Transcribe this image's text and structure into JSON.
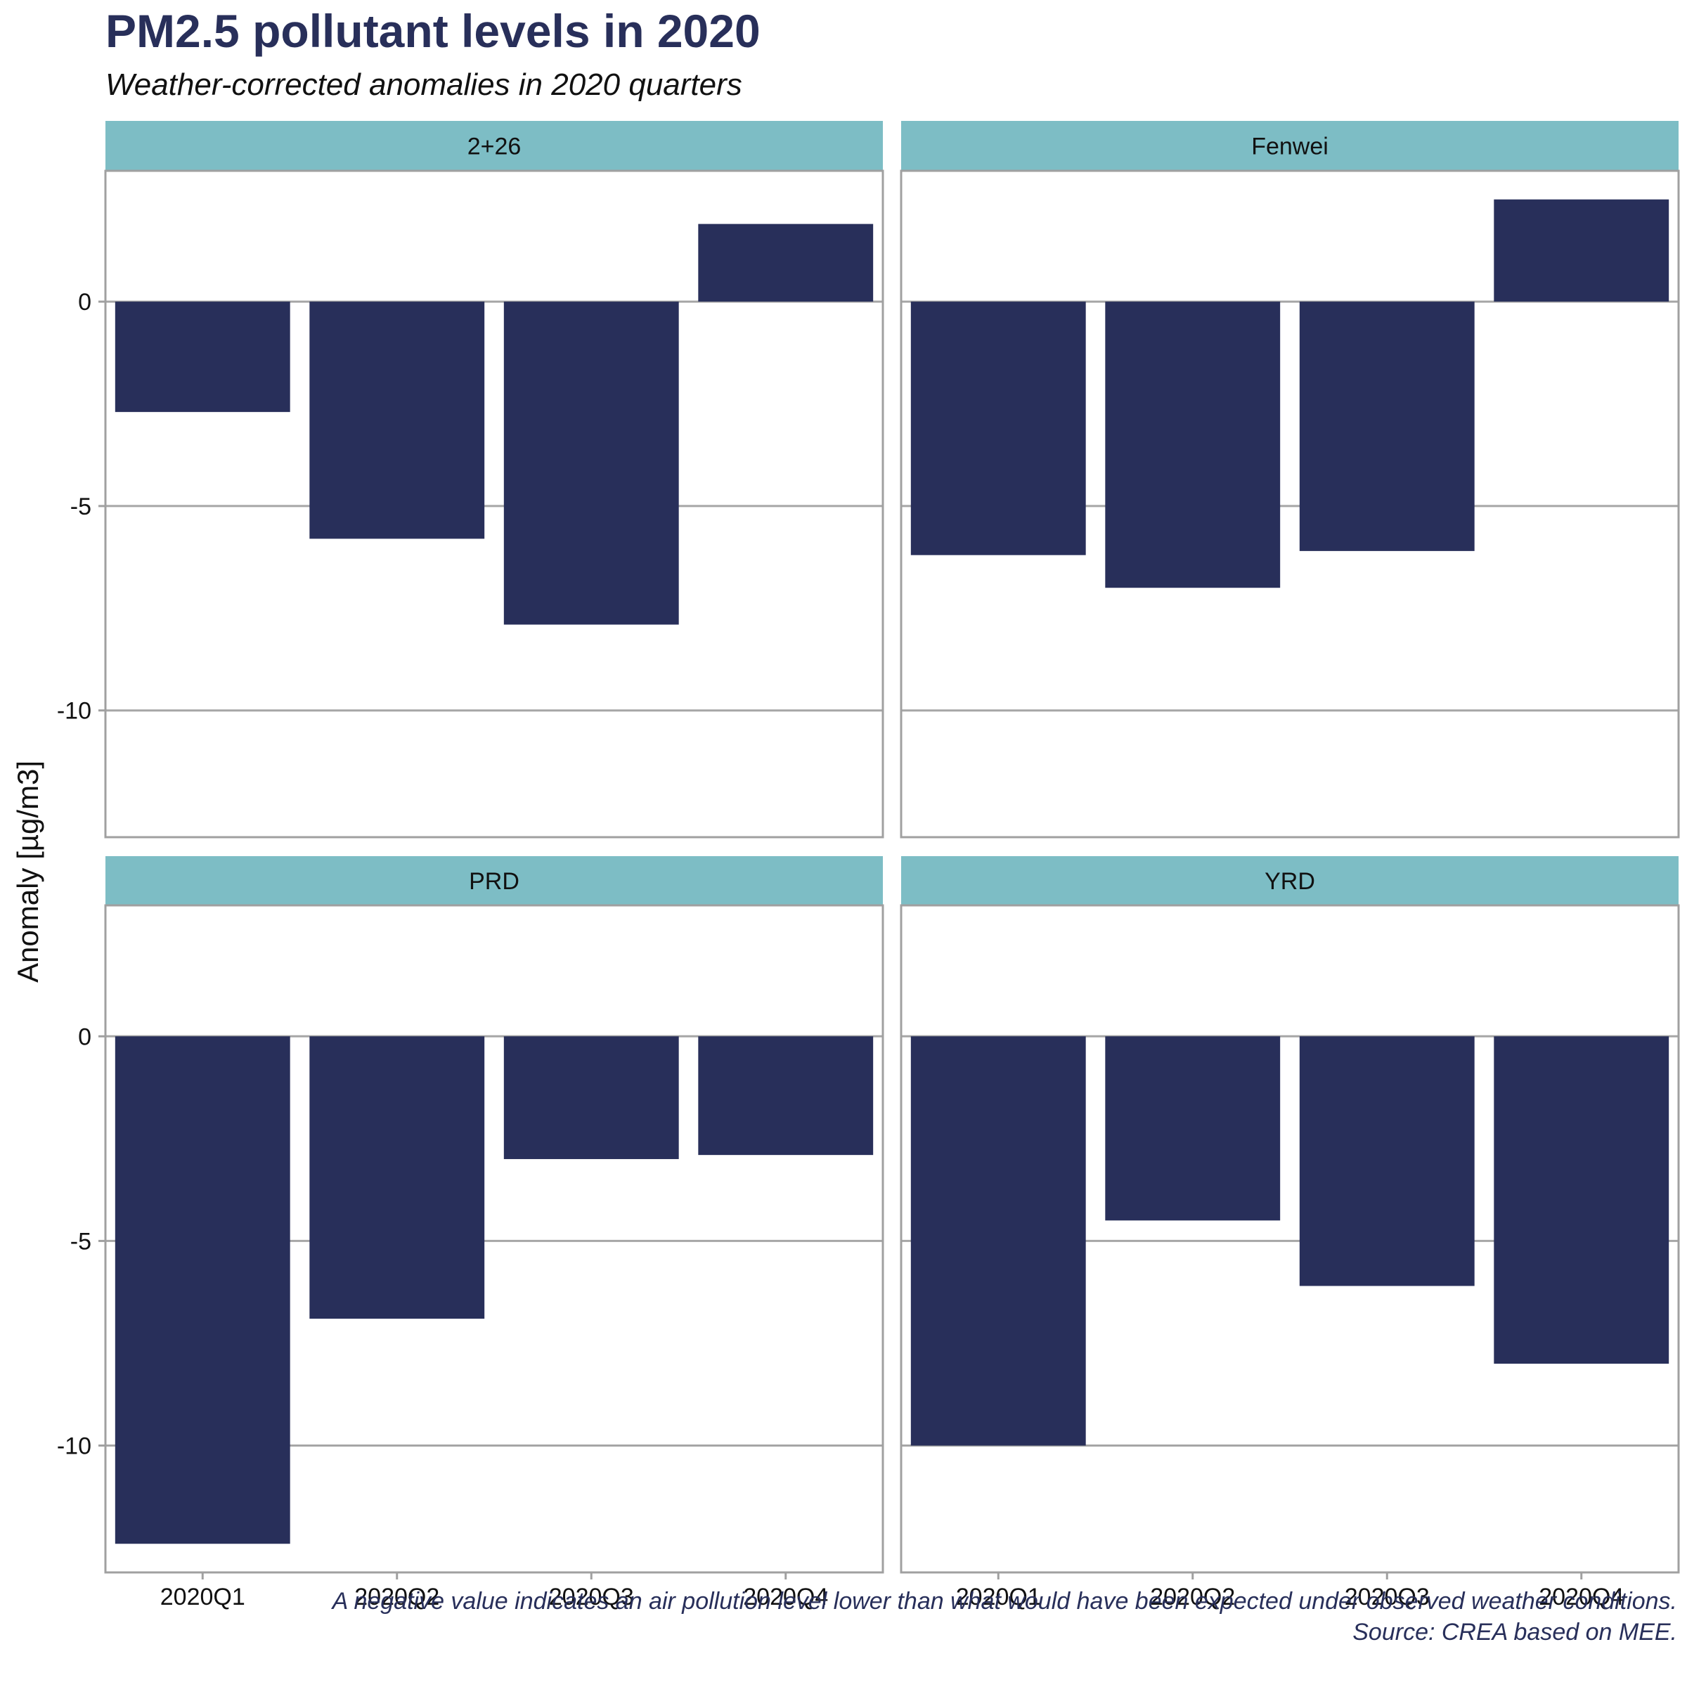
{
  "title": "PM2.5 pollutant levels in 2020",
  "subtitle": "Weather-corrected anomalies in 2020 quarters",
  "caption_line1": "A negative value indicates an air pollution level lower than what would have been expected under observed weather conditions.",
  "caption_line2": "Source: CREA based on MEE.",
  "colors": {
    "bar": "#282f5a",
    "strip": "#7dbdc5",
    "grid": "#a6a6a6",
    "border": "#a0a0a0",
    "text": "#111111"
  },
  "chart_data": {
    "type": "bar",
    "facets": [
      "2+26",
      "Fenwei",
      "PRD",
      "YRD"
    ],
    "categories": [
      "2020Q1",
      "2020Q2",
      "2020Q3",
      "2020Q4"
    ],
    "series": [
      {
        "name": "2+26",
        "values": [
          -2.7,
          -5.8,
          -7.9,
          1.9
        ]
      },
      {
        "name": "Fenwei",
        "values": [
          -6.2,
          -7.0,
          -6.1,
          2.5
        ]
      },
      {
        "name": "PRD",
        "values": [
          -12.4,
          -6.9,
          -3.0,
          -2.9
        ]
      },
      {
        "name": "YRD",
        "values": [
          -10.0,
          -4.5,
          -6.1,
          -8.0
        ]
      }
    ],
    "ylabel": "Anomaly [µg/m3]",
    "xlabel": "",
    "yticks": [
      0,
      -5,
      -10
    ],
    "ylim": [
      -13.1,
      3.2
    ],
    "grid": true,
    "legend": "none"
  }
}
